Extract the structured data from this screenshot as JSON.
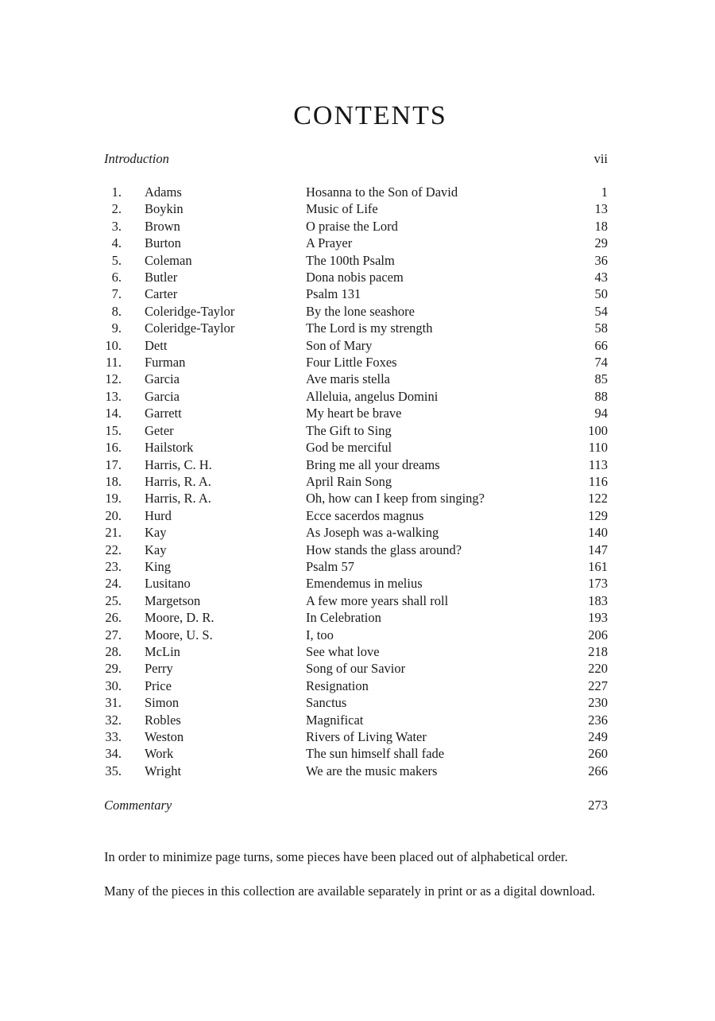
{
  "title": "CONTENTS",
  "introduction": {
    "label": "Introduction",
    "page": "vii"
  },
  "commentary": {
    "label": "Commentary",
    "page": "273"
  },
  "entries": [
    {
      "number": "1.",
      "composer": "Adams",
      "title": "Hosanna to the Son of David",
      "page": "1"
    },
    {
      "number": "2.",
      "composer": "Boykin",
      "title": "Music of Life",
      "page": "13"
    },
    {
      "number": "3.",
      "composer": "Brown",
      "title": "O praise the Lord",
      "page": "18"
    },
    {
      "number": "4.",
      "composer": "Burton",
      "title": "A Prayer",
      "page": "29"
    },
    {
      "number": "5.",
      "composer": "Coleman",
      "title": "The 100th Psalm",
      "page": "36"
    },
    {
      "number": "6.",
      "composer": "Butler",
      "title": "Dona nobis pacem",
      "page": "43"
    },
    {
      "number": "7.",
      "composer": "Carter",
      "title": "Psalm 131",
      "page": "50"
    },
    {
      "number": "8.",
      "composer": "Coleridge-Taylor",
      "title": "By the lone seashore",
      "page": "54"
    },
    {
      "number": "9.",
      "composer": "Coleridge-Taylor",
      "title": "The Lord is my strength",
      "page": "58"
    },
    {
      "number": "10.",
      "composer": "Dett",
      "title": "Son of Mary",
      "page": "66"
    },
    {
      "number": "11.",
      "composer": "Furman",
      "title": "Four Little Foxes",
      "page": "74"
    },
    {
      "number": "12.",
      "composer": "Garcia",
      "title": "Ave maris stella",
      "page": "85"
    },
    {
      "number": "13.",
      "composer": "Garcia",
      "title": "Alleluia, angelus Domini",
      "page": "88"
    },
    {
      "number": "14.",
      "composer": "Garrett",
      "title": "My heart be brave",
      "page": "94"
    },
    {
      "number": "15.",
      "composer": "Geter",
      "title": "The Gift to Sing",
      "page": "100"
    },
    {
      "number": "16.",
      "composer": "Hailstork",
      "title": "God be merciful",
      "page": "110"
    },
    {
      "number": "17.",
      "composer": "Harris, C. H.",
      "title": "Bring me all your dreams",
      "page": "113"
    },
    {
      "number": "18.",
      "composer": "Harris, R. A.",
      "title": "April Rain Song",
      "page": "116"
    },
    {
      "number": "19.",
      "composer": "Harris, R. A.",
      "title": "Oh, how can I keep from singing?",
      "page": "122"
    },
    {
      "number": "20.",
      "composer": "Hurd",
      "title": "Ecce sacerdos magnus",
      "page": "129"
    },
    {
      "number": "21.",
      "composer": "Kay",
      "title": "As Joseph was a-walking",
      "page": "140"
    },
    {
      "number": "22.",
      "composer": "Kay",
      "title": "How stands the glass around?",
      "page": "147"
    },
    {
      "number": "23.",
      "composer": "King",
      "title": "Psalm 57",
      "page": "161"
    },
    {
      "number": "24.",
      "composer": "Lusitano",
      "title": "Emendemus in melius",
      "page": "173"
    },
    {
      "number": "25.",
      "composer": "Margetson",
      "title": "A few more years shall roll",
      "page": "183"
    },
    {
      "number": "26.",
      "composer": "Moore, D. R.",
      "title": "In Celebration",
      "page": "193"
    },
    {
      "number": "27.",
      "composer": "Moore, U. S.",
      "title": "I, too",
      "page": "206"
    },
    {
      "number": "28.",
      "composer": "McLin",
      "title": "See what love",
      "page": "218"
    },
    {
      "number": "29.",
      "composer": "Perry",
      "title": "Song of our Savior",
      "page": "220"
    },
    {
      "number": "30.",
      "composer": "Price",
      "title": "Resignation",
      "page": "227"
    },
    {
      "number": "31.",
      "composer": "Simon",
      "title": "Sanctus",
      "page": "230"
    },
    {
      "number": "32.",
      "composer": "Robles",
      "title": "Magnificat",
      "page": "236"
    },
    {
      "number": "33.",
      "composer": "Weston",
      "title": "Rivers of Living Water",
      "page": "249"
    },
    {
      "number": "34.",
      "composer": "Work",
      "title": "The sun himself shall fade",
      "page": "260"
    },
    {
      "number": "35.",
      "composer": "Wright",
      "title": "We are the music makers",
      "page": "266"
    }
  ],
  "notes": [
    "In order to minimize page turns, some pieces have been placed out of alphabetical order.",
    "Many of the pieces in this collection are available separately in print or as a digital download."
  ],
  "colors": {
    "text": "#1b1b1b",
    "background": "#ffffff"
  }
}
